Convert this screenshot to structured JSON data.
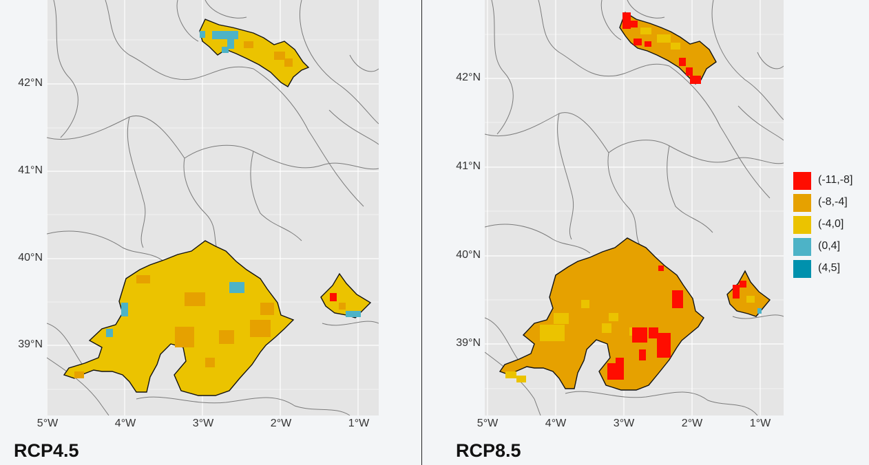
{
  "panels": [
    {
      "id": "left",
      "caption": "RCP4.5",
      "y_ticks": [
        "42°N",
        "41°N",
        "40°N",
        "39°N"
      ],
      "x_ticks": [
        "5°W",
        "4°W",
        "3°W",
        "2°W",
        "1°W"
      ]
    },
    {
      "id": "right",
      "caption": "RCP8.5",
      "y_ticks": [
        "42°N",
        "41°N",
        "40°N",
        "39°N"
      ],
      "x_ticks": [
        "5°W",
        "4°W",
        "3°W",
        "2°W",
        "1°W"
      ]
    }
  ],
  "legend": {
    "items": [
      {
        "label": "(-11,-8]",
        "color": "#ff0d00"
      },
      {
        "label": "(-8,-4]",
        "color": "#e6a100"
      },
      {
        "label": "(-4,0]",
        "color": "#ebc300"
      },
      {
        "label": "(0,4]",
        "color": "#4db3c7"
      },
      {
        "label": "(4,5]",
        "color": "#0091ad"
      }
    ]
  }
}
